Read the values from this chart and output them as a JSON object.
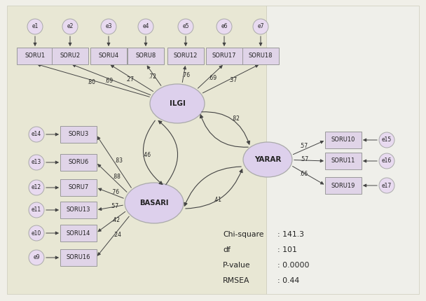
{
  "bg_outer": "#f0efe8",
  "bg_inner_left": "#e8e7d8",
  "bg_inner_right": "#eeeee8",
  "box_fill": "#e0d4e8",
  "box_edge": "#999999",
  "ell_fill": "#ddd0ec",
  "ell_edge": "#aaaaaa",
  "err_fill": "#e8daf0",
  "err_edge": "#aaaaaa",
  "txt": "#222222",
  "arr": "#444444",
  "ilgi_items": [
    "SORU1",
    "SORU2",
    "SORU4",
    "SORU8",
    "SORU12",
    "SORU17",
    "SORU18"
  ],
  "ilgi_w": [
    ".80",
    ".69",
    ".27",
    ".72",
    ".76",
    ".69",
    ".37"
  ],
  "ilgi_err": [
    "e1",
    "e2",
    "e3",
    "e4",
    "e5",
    "e6",
    "e7"
  ],
  "bas_items": [
    "SORU3",
    "SORU6",
    "SORU7",
    "SORU13",
    "SORU14",
    "SORU16"
  ],
  "bas_w": [
    ".83",
    ".88",
    ".76",
    ".57",
    ".42",
    ".24"
  ],
  "bas_err": [
    "e14",
    "e13",
    "e12",
    "e11",
    "e10",
    "e9"
  ],
  "yar_items": [
    "SORU10",
    "SORU11",
    "SORU19"
  ],
  "yar_w": [
    ".57",
    ".57",
    ".66"
  ],
  "yar_err": [
    "e15",
    "e16",
    "e17"
  ],
  "corr_IB": ".46",
  "corr_IY": ".82",
  "corr_BY": ".41",
  "figsize": [
    6.08,
    4.3
  ],
  "dpi": 100
}
